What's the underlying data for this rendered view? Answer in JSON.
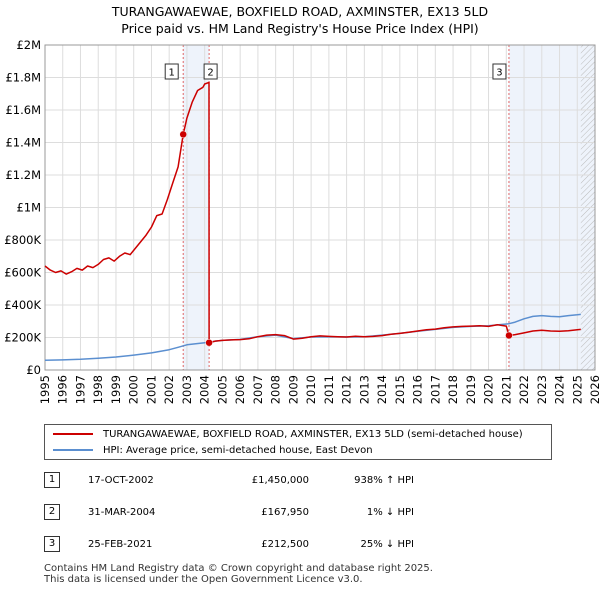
{
  "title_line1": "TURANGAWAEWAE, BOXFIELD ROAD, AXMINSTER, EX13 5LD",
  "title_line2": "Price paid vs. HM Land Registry's House Price Index (HPI)",
  "chart_data": {
    "type": "line",
    "title": "TURANGAWAEWAE, BOXFIELD ROAD, AXMINSTER, EX13 5LD — Price paid vs. HM Land Registry's House Price Index (HPI)",
    "xlabel": "",
    "ylabel": "",
    "xlim": [
      1995,
      2026
    ],
    "ylim": [
      0,
      2000000
    ],
    "grid": true,
    "ytick_values": [
      0,
      200000,
      400000,
      600000,
      800000,
      1000000,
      1200000,
      1400000,
      1600000,
      1800000,
      2000000
    ],
    "ytick_labels": [
      "£0",
      "£200K",
      "£400K",
      "£600K",
      "£800K",
      "£1M",
      "£1.2M",
      "£1.4M",
      "£1.6M",
      "£1.8M",
      "£2M"
    ],
    "xtick_labels": [
      "1995",
      "1996",
      "1997",
      "1998",
      "1999",
      "2000",
      "2001",
      "2002",
      "2003",
      "2004",
      "2005",
      "2006",
      "2007",
      "2008",
      "2009",
      "2010",
      "2011",
      "2012",
      "2013",
      "2014",
      "2015",
      "2016",
      "2017",
      "2018",
      "2019",
      "2020",
      "2021",
      "2022",
      "2023",
      "2024",
      "2025",
      "2026"
    ],
    "series": [
      {
        "name": "TURANGAWAEWAE, BOXFIELD ROAD, AXMINSTER, EX13 5LD (semi-detached house)",
        "color": "#cc0000",
        "points": [
          [
            1995.0,
            640000
          ],
          [
            1995.3,
            615000
          ],
          [
            1995.6,
            600000
          ],
          [
            1995.9,
            610000
          ],
          [
            1996.2,
            590000
          ],
          [
            1996.5,
            605000
          ],
          [
            1996.8,
            625000
          ],
          [
            1997.1,
            615000
          ],
          [
            1997.4,
            640000
          ],
          [
            1997.7,
            630000
          ],
          [
            1998.0,
            650000
          ],
          [
            1998.3,
            680000
          ],
          [
            1998.6,
            690000
          ],
          [
            1998.9,
            670000
          ],
          [
            1999.2,
            700000
          ],
          [
            1999.5,
            720000
          ],
          [
            1999.8,
            710000
          ],
          [
            2000.1,
            750000
          ],
          [
            2000.4,
            790000
          ],
          [
            2000.7,
            830000
          ],
          [
            2001.0,
            880000
          ],
          [
            2001.3,
            950000
          ],
          [
            2001.6,
            960000
          ],
          [
            2001.9,
            1050000
          ],
          [
            2002.2,
            1150000
          ],
          [
            2002.5,
            1250000
          ],
          [
            2002.79,
            1450000
          ],
          [
            2003.0,
            1550000
          ],
          [
            2003.3,
            1650000
          ],
          [
            2003.6,
            1720000
          ],
          [
            2003.9,
            1740000
          ],
          [
            2004.0,
            1760000
          ],
          [
            2004.245,
            1770000
          ],
          [
            2004.25,
            167950
          ],
          [
            2004.6,
            178000
          ],
          [
            2005.0,
            182000
          ],
          [
            2005.5,
            185000
          ],
          [
            2006.0,
            187000
          ],
          [
            2006.5,
            192000
          ],
          [
            2007.0,
            205000
          ],
          [
            2007.5,
            215000
          ],
          [
            2008.0,
            218000
          ],
          [
            2008.5,
            212000
          ],
          [
            2009.0,
            190000
          ],
          [
            2009.5,
            195000
          ],
          [
            2010.0,
            205000
          ],
          [
            2010.5,
            210000
          ],
          [
            2011.0,
            207000
          ],
          [
            2011.5,
            205000
          ],
          [
            2012.0,
            203000
          ],
          [
            2012.5,
            208000
          ],
          [
            2013.0,
            205000
          ],
          [
            2013.5,
            207000
          ],
          [
            2014.0,
            212000
          ],
          [
            2014.5,
            220000
          ],
          [
            2015.0,
            225000
          ],
          [
            2015.5,
            232000
          ],
          [
            2016.0,
            240000
          ],
          [
            2016.5,
            248000
          ],
          [
            2017.0,
            252000
          ],
          [
            2017.5,
            260000
          ],
          [
            2018.0,
            265000
          ],
          [
            2018.5,
            268000
          ],
          [
            2019.0,
            270000
          ],
          [
            2019.5,
            272000
          ],
          [
            2020.0,
            268000
          ],
          [
            2020.5,
            278000
          ],
          [
            2021.0,
            270000
          ],
          [
            2021.15,
            212500
          ],
          [
            2021.5,
            218000
          ],
          [
            2022.0,
            228000
          ],
          [
            2022.5,
            240000
          ],
          [
            2023.0,
            245000
          ],
          [
            2023.5,
            240000
          ],
          [
            2024.0,
            238000
          ],
          [
            2024.5,
            242000
          ],
          [
            2025.0,
            248000
          ],
          [
            2025.2,
            250000
          ]
        ]
      },
      {
        "name": "HPI: Average price, semi-detached house, East Devon",
        "color": "#5b8fd0",
        "points": [
          [
            1995.0,
            60000
          ],
          [
            1996.0,
            62000
          ],
          [
            1997.0,
            66000
          ],
          [
            1998.0,
            72000
          ],
          [
            1999.0,
            80000
          ],
          [
            2000.0,
            92000
          ],
          [
            2001.0,
            105000
          ],
          [
            2002.0,
            125000
          ],
          [
            2002.5,
            140000
          ],
          [
            2003.0,
            155000
          ],
          [
            2003.5,
            162000
          ],
          [
            2004.0,
            168000
          ],
          [
            2004.25,
            170000
          ],
          [
            2004.6,
            178000
          ],
          [
            2005.0,
            182000
          ],
          [
            2006.0,
            188000
          ],
          [
            2007.0,
            205000
          ],
          [
            2008.0,
            215000
          ],
          [
            2009.0,
            193000
          ],
          [
            2010.0,
            203000
          ],
          [
            2011.0,
            205000
          ],
          [
            2012.0,
            203000
          ],
          [
            2013.0,
            205000
          ],
          [
            2014.0,
            215000
          ],
          [
            2015.0,
            225000
          ],
          [
            2016.0,
            238000
          ],
          [
            2017.0,
            250000
          ],
          [
            2018.0,
            262000
          ],
          [
            2019.0,
            268000
          ],
          [
            2020.0,
            272000
          ],
          [
            2021.0,
            283000
          ],
          [
            2021.15,
            285000
          ],
          [
            2021.5,
            295000
          ],
          [
            2022.0,
            315000
          ],
          [
            2022.5,
            330000
          ],
          [
            2023.0,
            335000
          ],
          [
            2023.5,
            330000
          ],
          [
            2024.0,
            328000
          ],
          [
            2024.5,
            335000
          ],
          [
            2025.0,
            340000
          ],
          [
            2025.2,
            342000
          ]
        ]
      }
    ],
    "sales": [
      {
        "label": "1",
        "date": 2002.79,
        "price": 1450000
      },
      {
        "label": "2",
        "date": 2004.25,
        "price": 167950
      },
      {
        "label": "3",
        "date": 2021.15,
        "price": 212500
      }
    ],
    "shaded_regions": [
      {
        "from": 2002.79,
        "to": 2004.25,
        "color": "#eef3fb"
      },
      {
        "from": 2021.15,
        "to": 2026,
        "color": "#eef3fb"
      }
    ],
    "hatched_region": {
      "from": 2025.2,
      "to": 2026
    }
  },
  "legend": {
    "property": "TURANGAWAEWAE, BOXFIELD ROAD, AXMINSTER, EX13 5LD (semi-detached house)",
    "hpi": "HPI: Average price, semi-detached house, East Devon",
    "property_color": "#cc0000",
    "hpi_color": "#5b8fd0"
  },
  "transactions": [
    {
      "num": "1",
      "date": "17-OCT-2002",
      "price": "£1,450,000",
      "hpi": "938% ↑ HPI"
    },
    {
      "num": "2",
      "date": "31-MAR-2004",
      "price": "£167,950",
      "hpi": "1% ↓ HPI"
    },
    {
      "num": "3",
      "date": "25-FEB-2021",
      "price": "£212,500",
      "hpi": "25% ↓ HPI"
    }
  ],
  "footer": {
    "line1": "Contains HM Land Registry data © Crown copyright and database right 2025.",
    "line2": "This data is licensed under the Open Government Licence v3.0."
  }
}
